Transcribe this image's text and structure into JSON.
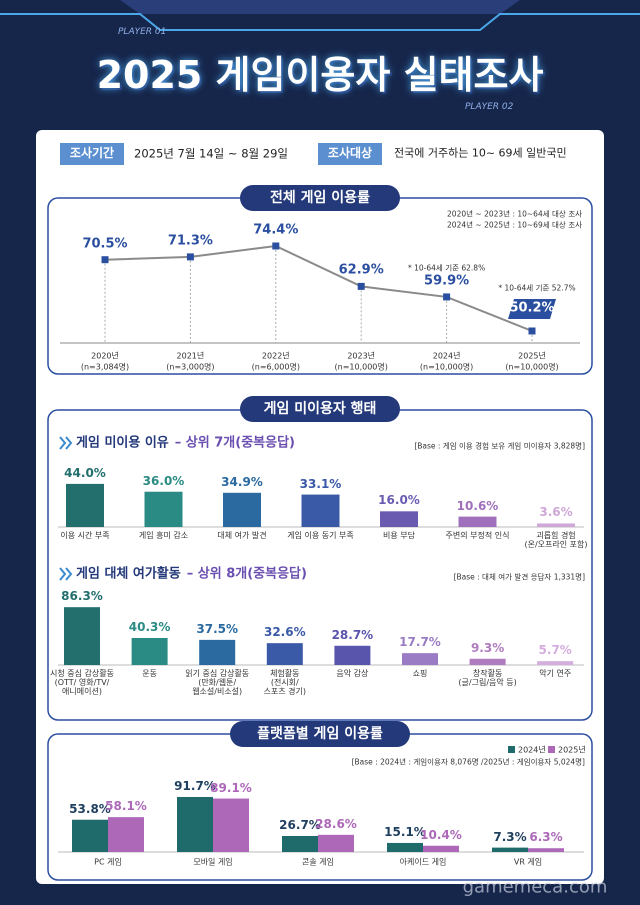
{
  "header": {
    "player1": "PLAYER 01",
    "title": "2025 게임이용자 실태조사",
    "player2": "PLAYER 02"
  },
  "survey": {
    "period_label": "조사기간",
    "period": "2025년 7월 14일 ~ 8월 29일",
    "target_label": "조사대상",
    "target": "전국에 거주하는 10~ 69세 일반국민"
  },
  "section": "게임 미이용자 행태",
  "watermark": "gamemeca.com",
  "chart_data": [
    {
      "type": "line",
      "title": "전체 게임 이용률",
      "notes": [
        "2020년 ~ 2023년 : 10~64세 대상 조사",
        "2024년 ~ 2025년 : 10~69세 대상 조사"
      ],
      "categories": [
        "2020년",
        "2021년",
        "2022년",
        "2023년",
        "2024년",
        "2025년"
      ],
      "sample_sizes": [
        "(n=3,084명)",
        "(n=3,000명)",
        "(n=6,000명)",
        "(n=10,000명)",
        "(n=10,000명)",
        "(n=10,000명)"
      ],
      "values": [
        70.5,
        71.3,
        74.4,
        62.9,
        59.9,
        50.2
      ],
      "value_labels": [
        "70.5%",
        "71.3%",
        "74.4%",
        "62.9%",
        "59.9%",
        "50.2%"
      ],
      "annotations": [
        "* 10-64세 기준 62.8%",
        "* 10-64세 기준 52.7%"
      ],
      "color": "#2b4fa0"
    },
    {
      "type": "bar",
      "title": "게임 미이용 이유",
      "subtitle": "– 상위 7개(중복응답)",
      "base": "[Base : 게임 이용 경험 보유 게임 미이용자 3,828명]",
      "categories": [
        "이용 시간 부족",
        "게임 흥미 감소",
        "대체 여가 발견",
        "게임 이용 동기 부족",
        "비용 부담",
        "주변의 부정적 인식",
        "괴롭힘 경험\n(온/오프라인 포함)"
      ],
      "values": [
        44.0,
        36.0,
        34.9,
        33.1,
        16.0,
        10.6,
        3.6
      ],
      "value_labels": [
        "44.0%",
        "36.0%",
        "34.9%",
        "33.1%",
        "16.0%",
        "10.6%",
        "3.6%"
      ],
      "colors": [
        "#236f6e",
        "#2a8b84",
        "#2a6aa0",
        "#3a5aa8",
        "#6a5bb0",
        "#a070bc",
        "#cfa8d8"
      ]
    },
    {
      "type": "bar",
      "title": "게임 대체 여가활동",
      "subtitle": "– 상위 8개(중복응답)",
      "base": "[Base : 대체 여가 발견 응답자 1,331명]",
      "categories": [
        "시청 중심 감상활동\n(OTT/ 영화/TV/\n애니메이션)",
        "운동",
        "읽기 중심 감상활동\n(만화/웹툰/\n웹소설/비소설)",
        "체험활동\n(전시회/\n스포츠 경기)",
        "음악 감상",
        "쇼핑",
        "창작활동\n(글/그림/음악 등)",
        "악기 연주"
      ],
      "values": [
        86.3,
        40.3,
        37.5,
        32.6,
        28.7,
        17.7,
        9.3,
        5.7
      ],
      "value_labels": [
        "86.3%",
        "40.3%",
        "37.5%",
        "32.6%",
        "28.7%",
        "17.7%",
        "9.3%",
        "5.7%"
      ],
      "colors": [
        "#236f6e",
        "#2a8b84",
        "#2a6aa0",
        "#3a5aa8",
        "#5a55ac",
        "#9a7cc4",
        "#b07cc0",
        "#d4aede"
      ]
    },
    {
      "type": "grouped-bar",
      "title": "플랫폼별 게임 이용률",
      "base": "[Base : 2024년 : 게임이용자 8,076명 /2025년 : 게임이용자 5,024명]",
      "categories": [
        "PC 게임",
        "모바일 게임",
        "콘솔 게임",
        "아케이드 게임",
        "VR 게임"
      ],
      "series": [
        {
          "name": "2024년",
          "color": "#1f6b6c",
          "values": [
            53.8,
            91.7,
            26.7,
            15.1,
            7.3
          ],
          "value_labels": [
            "53.8%",
            "91.7%",
            "26.7%",
            "15.1%",
            "7.3%"
          ]
        },
        {
          "name": "2025년",
          "color": "#ad69b8",
          "values": [
            58.1,
            89.1,
            28.6,
            10.4,
            6.3
          ],
          "value_labels": [
            "58.1%",
            "89.1%",
            "28.6%",
            "10.4%",
            "6.3%"
          ]
        }
      ]
    }
  ]
}
